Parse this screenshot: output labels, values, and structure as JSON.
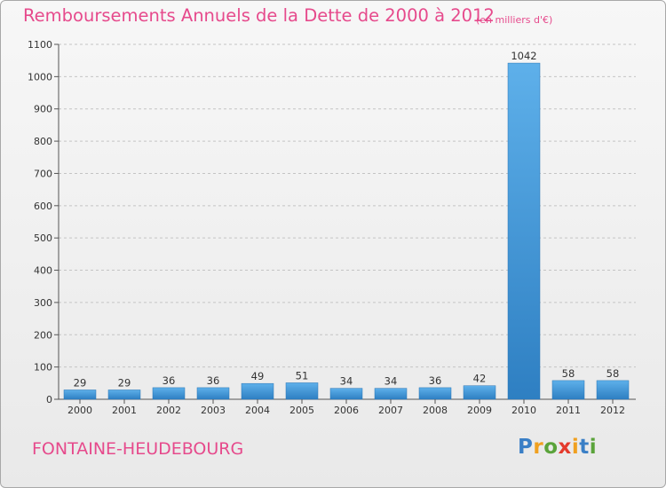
{
  "chart_data": {
    "type": "bar",
    "title": "Remboursements Annuels de la Dette de 2000 à 2012",
    "unit": "(en milliers d'€)",
    "categories": [
      "2000",
      "2001",
      "2002",
      "2003",
      "2004",
      "2005",
      "2006",
      "2007",
      "2008",
      "2009",
      "2010",
      "2011",
      "2012"
    ],
    "values": [
      29,
      29,
      36,
      36,
      49,
      51,
      34,
      34,
      36,
      42,
      1042,
      58,
      58
    ],
    "ylim": [
      0,
      1100
    ],
    "yticks": [
      0,
      100,
      200,
      300,
      400,
      500,
      600,
      700,
      800,
      900,
      1000,
      1100
    ],
    "grid": true,
    "bar_color": "#3d8fd6"
  },
  "commune": "FONTAINE-HEUDEBOURG",
  "logo": {
    "letters": [
      "P",
      "r",
      "o",
      "x",
      "i",
      "t",
      "i"
    ],
    "colors": [
      "#3a7fc6",
      "#f0a020",
      "#5aa33a",
      "#e43a2c",
      "#f0a020",
      "#3a7fc6",
      "#5aa33a"
    ]
  }
}
